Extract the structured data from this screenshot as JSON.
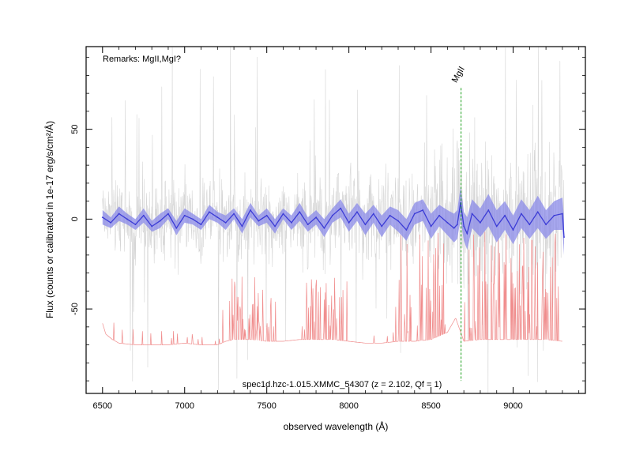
{
  "chart_data": {
    "type": "line",
    "xlabel": "observed wavelength (Å)",
    "ylabel": "Flux (counts or calibrated in 1e-17 erg/s/cm²/Å)",
    "xlim": [
      6400,
      9440
    ],
    "ylim": [
      -97,
      96
    ],
    "xticks": [
      6500,
      7000,
      7500,
      8000,
      8500,
      9000
    ],
    "yticks": [
      -50,
      0,
      50
    ],
    "remarks": "Remarks: MgII,MgI?",
    "caption": "spec1d.hzc-1.015.XMMC_54307 (z = 2.102, Qf = 1)",
    "line_marker": {
      "label": "MgII",
      "x": 8683,
      "y_top": 73,
      "y_bottom": -90
    },
    "grid": false,
    "colors": {
      "raw": "#c8c8c8",
      "smoothed": "#3c3cd6",
      "error_band": "#8a8ae8",
      "sky": "#f08c8c",
      "marker": "#1a9e1a"
    },
    "series": [
      {
        "x": [
          6500,
          6550,
          6600,
          6650,
          6700,
          6750,
          6800,
          6850,
          6900,
          6950,
          7000,
          7050,
          7100,
          7150,
          7200,
          7250,
          7300,
          7350,
          7400,
          7450,
          7500,
          7550,
          7600,
          7650,
          7700,
          7750,
          7800,
          7850,
          7900,
          7950,
          8000,
          8050,
          8100,
          8150,
          8200,
          8250,
          8300,
          8350,
          8400,
          8450,
          8500,
          8550,
          8600,
          8640,
          8660,
          8680,
          8700,
          8720,
          8750,
          8800,
          8850,
          8900,
          8950,
          9000,
          9050,
          9100,
          9150,
          9200,
          9250,
          9300,
          9310
        ],
        "y": [
          1,
          -2,
          3,
          0,
          -3,
          2,
          -4,
          -1,
          3,
          -5,
          2,
          0,
          -3,
          4,
          1,
          -2,
          3,
          -4,
          5,
          -1,
          2,
          -4,
          3,
          -2,
          4,
          -3,
          1,
          -5,
          2,
          6,
          -2,
          4,
          -3,
          3,
          -4,
          2,
          -1,
          -6,
          3,
          5,
          -4,
          2,
          -2,
          -5,
          -3,
          9,
          -4,
          -8,
          3,
          -2,
          5,
          -4,
          2,
          -6,
          3,
          -3,
          4,
          -3,
          2,
          3,
          -10
        ],
        "error": [
          4,
          3,
          4,
          3,
          3,
          4,
          3,
          4,
          3,
          4,
          4,
          3,
          3,
          4,
          3,
          4,
          3,
          4,
          4,
          3,
          4,
          4,
          3,
          4,
          5,
          4,
          4,
          5,
          4,
          5,
          5,
          5,
          6,
          5,
          6,
          5,
          6,
          6,
          6,
          6,
          7,
          6,
          7,
          8,
          8,
          9,
          8,
          9,
          8,
          8,
          9,
          9,
          8,
          8,
          8,
          8,
          9,
          8,
          8,
          9,
          10
        ]
      }
    ],
    "sky_spectrum": {
      "baseline": -70,
      "x": [
        6500,
        6520,
        6560,
        6600,
        6700,
        6800,
        6900,
        7000,
        7100,
        7200,
        7250,
        7300,
        7400,
        7500,
        7600,
        7700,
        7800,
        7900,
        8000,
        8100,
        8200,
        8300,
        8400,
        8500,
        8600,
        8650,
        8700,
        8800,
        8900,
        9000,
        9100,
        9200,
        9300
      ],
      "y": [
        -58,
        -64,
        -67,
        -69,
        -70,
        -70,
        -70,
        -69,
        -70,
        -70,
        -68,
        -67,
        -67,
        -68,
        -68,
        -67,
        -67,
        -67,
        -68,
        -69,
        -69,
        -68,
        -68,
        -67,
        -63,
        -55,
        -68,
        -67,
        -67,
        -67,
        -67,
        -67,
        -68
      ]
    }
  }
}
